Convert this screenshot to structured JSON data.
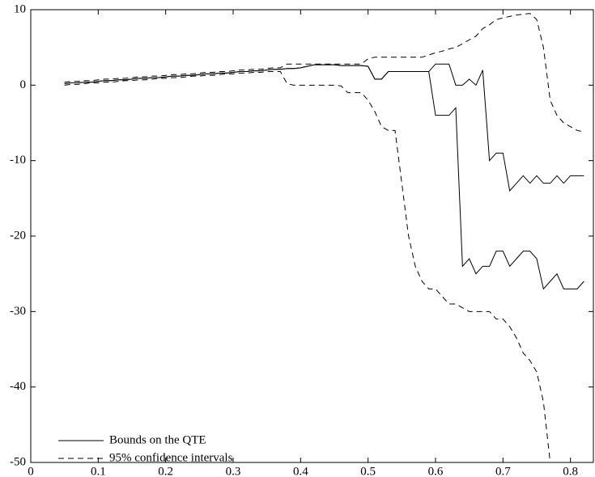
{
  "chart_data": {
    "type": "line",
    "x": [
      0.05,
      0.06,
      0.07,
      0.08,
      0.09,
      0.1,
      0.11,
      0.12,
      0.13,
      0.14,
      0.15,
      0.16,
      0.17,
      0.18,
      0.19,
      0.2,
      0.21,
      0.22,
      0.23,
      0.24,
      0.25,
      0.26,
      0.27,
      0.28,
      0.29,
      0.3,
      0.31,
      0.32,
      0.33,
      0.34,
      0.35,
      0.36,
      0.37,
      0.38,
      0.39,
      0.4,
      0.41,
      0.42,
      0.43,
      0.44,
      0.45,
      0.46,
      0.47,
      0.48,
      0.49,
      0.5,
      0.51,
      0.52,
      0.53,
      0.54,
      0.55,
      0.56,
      0.57,
      0.58,
      0.59,
      0.6,
      0.61,
      0.62,
      0.63,
      0.64,
      0.65,
      0.66,
      0.67,
      0.68,
      0.69,
      0.7,
      0.71,
      0.72,
      0.73,
      0.74,
      0.75,
      0.76,
      0.77,
      0.78,
      0.79,
      0.8,
      0.81,
      0.82
    ],
    "series": [
      {
        "name": "Bounds on the QTE",
        "color": "#000000",
        "dash": false,
        "lines": [
          {
            "values": [
              0.2,
              0.3,
              0.3,
              0.4,
              0.4,
              0.5,
              0.6,
              0.6,
              0.7,
              0.7,
              0.8,
              0.9,
              0.9,
              1.0,
              1.0,
              1.1,
              1.2,
              1.2,
              1.3,
              1.3,
              1.4,
              1.5,
              1.5,
              1.6,
              1.6,
              1.7,
              1.8,
              1.8,
              1.9,
              1.9,
              2.0,
              2.1,
              2.1,
              2.2,
              2.2,
              2.3,
              2.5,
              2.7,
              2.7,
              2.7,
              2.7,
              2.6,
              2.6,
              2.6,
              2.6,
              2.5,
              0.8,
              0.8,
              1.8,
              1.8,
              1.8,
              1.8,
              1.8,
              1.8,
              1.8,
              2.8,
              2.8,
              2.8,
              0,
              0,
              0.8,
              0,
              2,
              -10,
              -9,
              -9,
              -14,
              -13,
              -12,
              -13,
              -12,
              -13,
              -13,
              -12,
              -13,
              -12,
              -12,
              -12
            ]
          },
          {
            "values": [
              0.2,
              0.3,
              0.3,
              0.4,
              0.4,
              0.5,
              0.6,
              0.6,
              0.7,
              0.7,
              0.8,
              0.9,
              0.9,
              1.0,
              1.0,
              1.1,
              1.2,
              1.2,
              1.3,
              1.3,
              1.4,
              1.5,
              1.5,
              1.6,
              1.6,
              1.7,
              1.8,
              1.8,
              1.9,
              1.9,
              2.0,
              2.1,
              2.1,
              2.2,
              2.2,
              2.3,
              2.5,
              2.7,
              2.7,
              2.7,
              2.7,
              2.6,
              2.6,
              2.6,
              2.6,
              2.5,
              0.8,
              0.8,
              1.8,
              1.8,
              1.8,
              1.8,
              1.8,
              1.8,
              1.8,
              -4,
              -4,
              -4,
              -3,
              -24,
              -23,
              -25,
              -24,
              -24,
              -22,
              -22,
              -24,
              -23,
              -22,
              -22,
              -23,
              -27,
              -26,
              -25,
              -27,
              -27,
              -27,
              -26
            ]
          }
        ]
      },
      {
        "name": "95% confidence intervals",
        "color": "#000000",
        "dash": true,
        "lines": [
          {
            "values": [
              0.4,
              0.5,
              0.5,
              0.6,
              0.6,
              0.7,
              0.8,
              0.8,
              0.9,
              0.9,
              1.0,
              1.1,
              1.1,
              1.2,
              1.2,
              1.3,
              1.4,
              1.4,
              1.5,
              1.5,
              1.6,
              1.7,
              1.7,
              1.8,
              1.8,
              1.9,
              2.0,
              2.0,
              2.1,
              2.1,
              2.2,
              2.3,
              2.3,
              2.8,
              2.8,
              2.8,
              2.8,
              2.8,
              2.8,
              2.8,
              2.8,
              2.8,
              2.8,
              2.8,
              2.8,
              3.5,
              3.7,
              3.7,
              3.7,
              3.7,
              3.7,
              3.7,
              3.7,
              3.7,
              4.0,
              4.3,
              4.5,
              4.8,
              5.0,
              5.5,
              6.0,
              6.5,
              7.5,
              8.0,
              8.7,
              8.9,
              9.1,
              9.3,
              9.4,
              9.5,
              8.7,
              5.0,
              -2.0,
              -4.0,
              -5.0,
              -5.5,
              -6.0,
              -6.2
            ]
          },
          {
            "values": [
              0.0,
              0.1,
              0.1,
              0.2,
              0.3,
              0.3,
              0.4,
              0.4,
              0.5,
              0.6,
              0.6,
              0.7,
              0.7,
              0.8,
              0.9,
              0.9,
              1.0,
              1.0,
              1.1,
              1.2,
              1.2,
              1.3,
              1.3,
              1.4,
              1.5,
              1.5,
              1.6,
              1.6,
              1.7,
              1.7,
              1.8,
              1.8,
              1.8,
              0.2,
              0,
              0,
              0,
              0,
              0,
              0,
              0,
              -0.1,
              -1,
              -1,
              -1,
              -2,
              -3.5,
              -5.5,
              -6,
              -6,
              -13,
              -20,
              -24,
              -26,
              -27,
              -27,
              -28,
              -29,
              -29,
              -29.5,
              -30,
              -30,
              -30,
              -30,
              -31,
              -31,
              -32,
              -33.5,
              -35.5,
              -36.5,
              -38,
              -42,
              -50,
              null,
              null,
              null,
              null,
              null
            ]
          }
        ]
      }
    ],
    "xlim": [
      0,
      0.834
    ],
    "xticks": [
      0,
      0.1,
      0.2,
      0.3,
      0.4,
      0.5,
      0.6,
      0.7,
      0.8
    ],
    "ylim": [
      -50,
      10
    ],
    "yticks": [
      -50,
      -40,
      -30,
      -20,
      -10,
      0,
      10
    ],
    "grid": false,
    "legend": "lower left"
  }
}
